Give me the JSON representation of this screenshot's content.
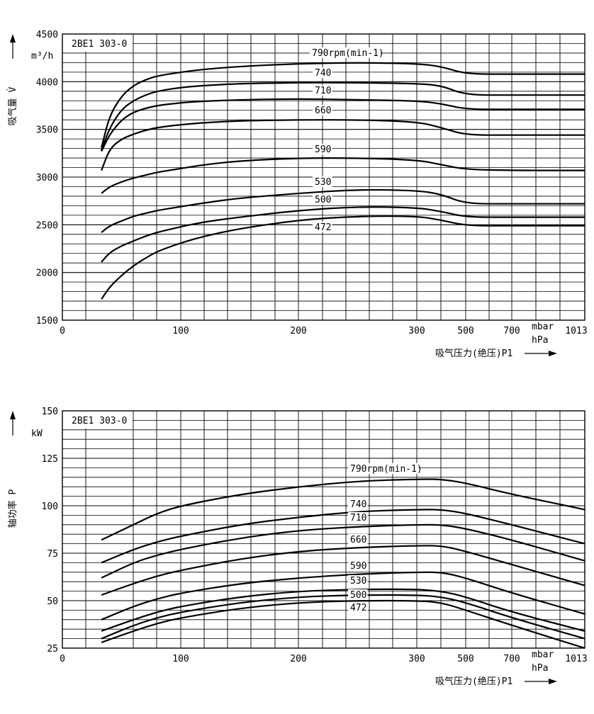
{
  "chart_data": [
    {
      "type": "line",
      "title": "2BE1 303-0",
      "ylabel": "吸气量 V̇",
      "yunit": "m³/h",
      "xlabel": "吸气压力(绝压)P1",
      "xunit_line1": "mbar",
      "xunit_line2": "hPa",
      "ylim": [
        1500,
        4500
      ],
      "yticks": [
        "4500",
        "4000",
        "3500",
        "3000",
        "2500",
        "2000",
        "1500"
      ],
      "xticks": [
        "0",
        "100",
        "200",
        "300",
        "500",
        "700",
        "1013"
      ],
      "series": [
        {
          "name": "790rpm(min-1)",
          "x": [
            33,
            40,
            50,
            60,
            70,
            80,
            100,
            120,
            150,
            200,
            250,
            300,
            400,
            500,
            700,
            1013
          ],
          "y": [
            3310,
            3650,
            3850,
            3960,
            4020,
            4060,
            4100,
            4130,
            4160,
            4190,
            4200,
            4190,
            4160,
            4080,
            4080,
            4080
          ]
        },
        {
          "name": "740",
          "x": [
            33,
            40,
            50,
            60,
            70,
            80,
            100,
            120,
            150,
            200,
            250,
            300,
            400,
            500,
            700,
            1013
          ],
          "y": [
            3280,
            3520,
            3710,
            3800,
            3860,
            3900,
            3940,
            3960,
            3980,
            3990,
            3990,
            3980,
            3960,
            3860,
            3860,
            3860
          ]
        },
        {
          "name": "710",
          "x": [
            33,
            40,
            50,
            60,
            70,
            80,
            100,
            120,
            150,
            200,
            250,
            300,
            400,
            500,
            700,
            1013
          ],
          "y": [
            3270,
            3450,
            3600,
            3680,
            3720,
            3750,
            3780,
            3795,
            3810,
            3820,
            3810,
            3800,
            3770,
            3710,
            3710,
            3710
          ]
        },
        {
          "name": "660",
          "x": [
            33,
            40,
            50,
            60,
            70,
            80,
            100,
            120,
            150,
            200,
            250,
            300,
            400,
            500,
            700,
            1013
          ],
          "y": [
            3070,
            3300,
            3400,
            3450,
            3490,
            3520,
            3550,
            3570,
            3590,
            3600,
            3600,
            3580,
            3520,
            3440,
            3440,
            3440
          ]
        },
        {
          "name": "590",
          "x": [
            33,
            40,
            50,
            60,
            70,
            80,
            100,
            120,
            150,
            200,
            250,
            300,
            400,
            500,
            700,
            1013
          ],
          "y": [
            2830,
            2900,
            2950,
            2990,
            3020,
            3050,
            3090,
            3130,
            3170,
            3200,
            3200,
            3180,
            3130,
            3080,
            3070,
            3070
          ]
        },
        {
          "name": "530",
          "x": [
            33,
            40,
            50,
            60,
            70,
            80,
            100,
            120,
            150,
            200,
            250,
            300,
            400,
            500,
            700,
            1013
          ],
          "y": [
            2420,
            2490,
            2540,
            2590,
            2620,
            2650,
            2690,
            2730,
            2780,
            2830,
            2870,
            2860,
            2820,
            2720,
            2720,
            2720
          ]
        },
        {
          "name": "500",
          "x": [
            33,
            40,
            50,
            60,
            70,
            80,
            100,
            120,
            150,
            200,
            250,
            300,
            400,
            500,
            700,
            1013
          ],
          "y": [
            2110,
            2210,
            2280,
            2330,
            2380,
            2420,
            2480,
            2530,
            2580,
            2650,
            2690,
            2680,
            2640,
            2580,
            2580,
            2580
          ]
        },
        {
          "name": "472",
          "x": [
            33,
            40,
            50,
            60,
            70,
            80,
            100,
            120,
            150,
            200,
            250,
            300,
            400,
            500,
            700,
            1013
          ],
          "y": [
            1720,
            1850,
            1970,
            2070,
            2150,
            2220,
            2310,
            2380,
            2460,
            2550,
            2590,
            2590,
            2550,
            2490,
            2490,
            2490
          ]
        }
      ]
    },
    {
      "type": "line",
      "title": "2BE1 303-0",
      "ylabel": "轴功率 P",
      "yunit": "kW",
      "xlabel": "吸气压力(绝压)P1",
      "xunit_line1": "mbar",
      "xunit_line2": "hPa",
      "ylim": [
        25,
        150
      ],
      "yticks": [
        "150",
        "125",
        "100",
        "75",
        "50",
        "25"
      ],
      "xticks": [
        "0",
        "100",
        "200",
        "300",
        "500",
        "700",
        "1013"
      ],
      "series": [
        {
          "name": "790rpm(min-1)",
          "x": [
            33,
            60,
            80,
            100,
            150,
            200,
            250,
            300,
            400,
            500,
            700,
            1013
          ],
          "y": [
            82,
            90,
            96,
            100,
            106,
            110,
            113,
            114,
            114,
            112,
            106,
            98
          ]
        },
        {
          "name": "740",
          "x": [
            33,
            60,
            80,
            100,
            150,
            200,
            250,
            300,
            400,
            500,
            700,
            1013
          ],
          "y": [
            70,
            77,
            81,
            84,
            90,
            94,
            97,
            98,
            98,
            96,
            90,
            80
          ]
        },
        {
          "name": "710",
          "x": [
            33,
            60,
            80,
            100,
            150,
            200,
            250,
            300,
            400,
            500,
            700,
            1013
          ],
          "y": [
            62,
            70,
            74,
            77,
            83,
            87,
            89,
            90,
            90,
            88,
            82,
            71
          ]
        },
        {
          "name": "660",
          "x": [
            33,
            60,
            80,
            100,
            150,
            200,
            250,
            300,
            400,
            500,
            700,
            1013
          ],
          "y": [
            53,
            59,
            63,
            66,
            72,
            76,
            78,
            79,
            79,
            76,
            69,
            58
          ]
        },
        {
          "name": "590",
          "x": [
            33,
            60,
            80,
            100,
            150,
            200,
            250,
            300,
            400,
            500,
            700,
            1013
          ],
          "y": [
            40,
            47,
            51,
            54,
            59,
            62,
            64,
            65,
            65,
            62,
            54,
            43
          ]
        },
        {
          "name": "530",
          "x": [
            33,
            60,
            80,
            100,
            150,
            200,
            250,
            300,
            400,
            500,
            700,
            1013
          ],
          "y": [
            34,
            40,
            44,
            47,
            52,
            55,
            56,
            56,
            55,
            52,
            44,
            34
          ]
        },
        {
          "name": "500",
          "x": [
            33,
            60,
            80,
            100,
            150,
            200,
            250,
            300,
            400,
            500,
            700,
            1013
          ],
          "y": [
            30,
            37,
            41,
            44,
            49,
            52,
            53,
            53,
            52,
            49,
            41,
            30
          ]
        },
        {
          "name": "472",
          "x": [
            33,
            60,
            80,
            100,
            150,
            200,
            250,
            300,
            400,
            500,
            700,
            1013
          ],
          "y": [
            28,
            34,
            38,
            41,
            46,
            49,
            50,
            50,
            49,
            45,
            37,
            25
          ]
        }
      ]
    }
  ]
}
